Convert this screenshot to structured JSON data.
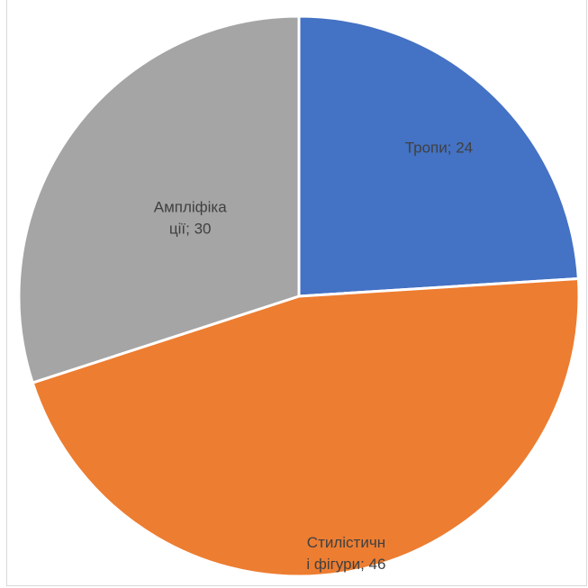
{
  "chart_data": {
    "type": "pie",
    "title": "",
    "slices": [
      {
        "label": "Тропи",
        "value": 24,
        "display": [
          "Тропи; 24"
        ],
        "color": "#4472C4"
      },
      {
        "label": "Стилістичні фігури",
        "value": 46,
        "display": [
          "Стилістичн",
          "і фігури; 46"
        ],
        "color": "#ED7D31"
      },
      {
        "label": "Ампліфікації",
        "value": 30,
        "display": [
          "Ампліфіка",
          "ції; 30"
        ],
        "color": "#A5A5A5"
      }
    ],
    "start": "12 o'clock",
    "direction": "clockwise",
    "legend": "none",
    "data_labels": "inside"
  }
}
